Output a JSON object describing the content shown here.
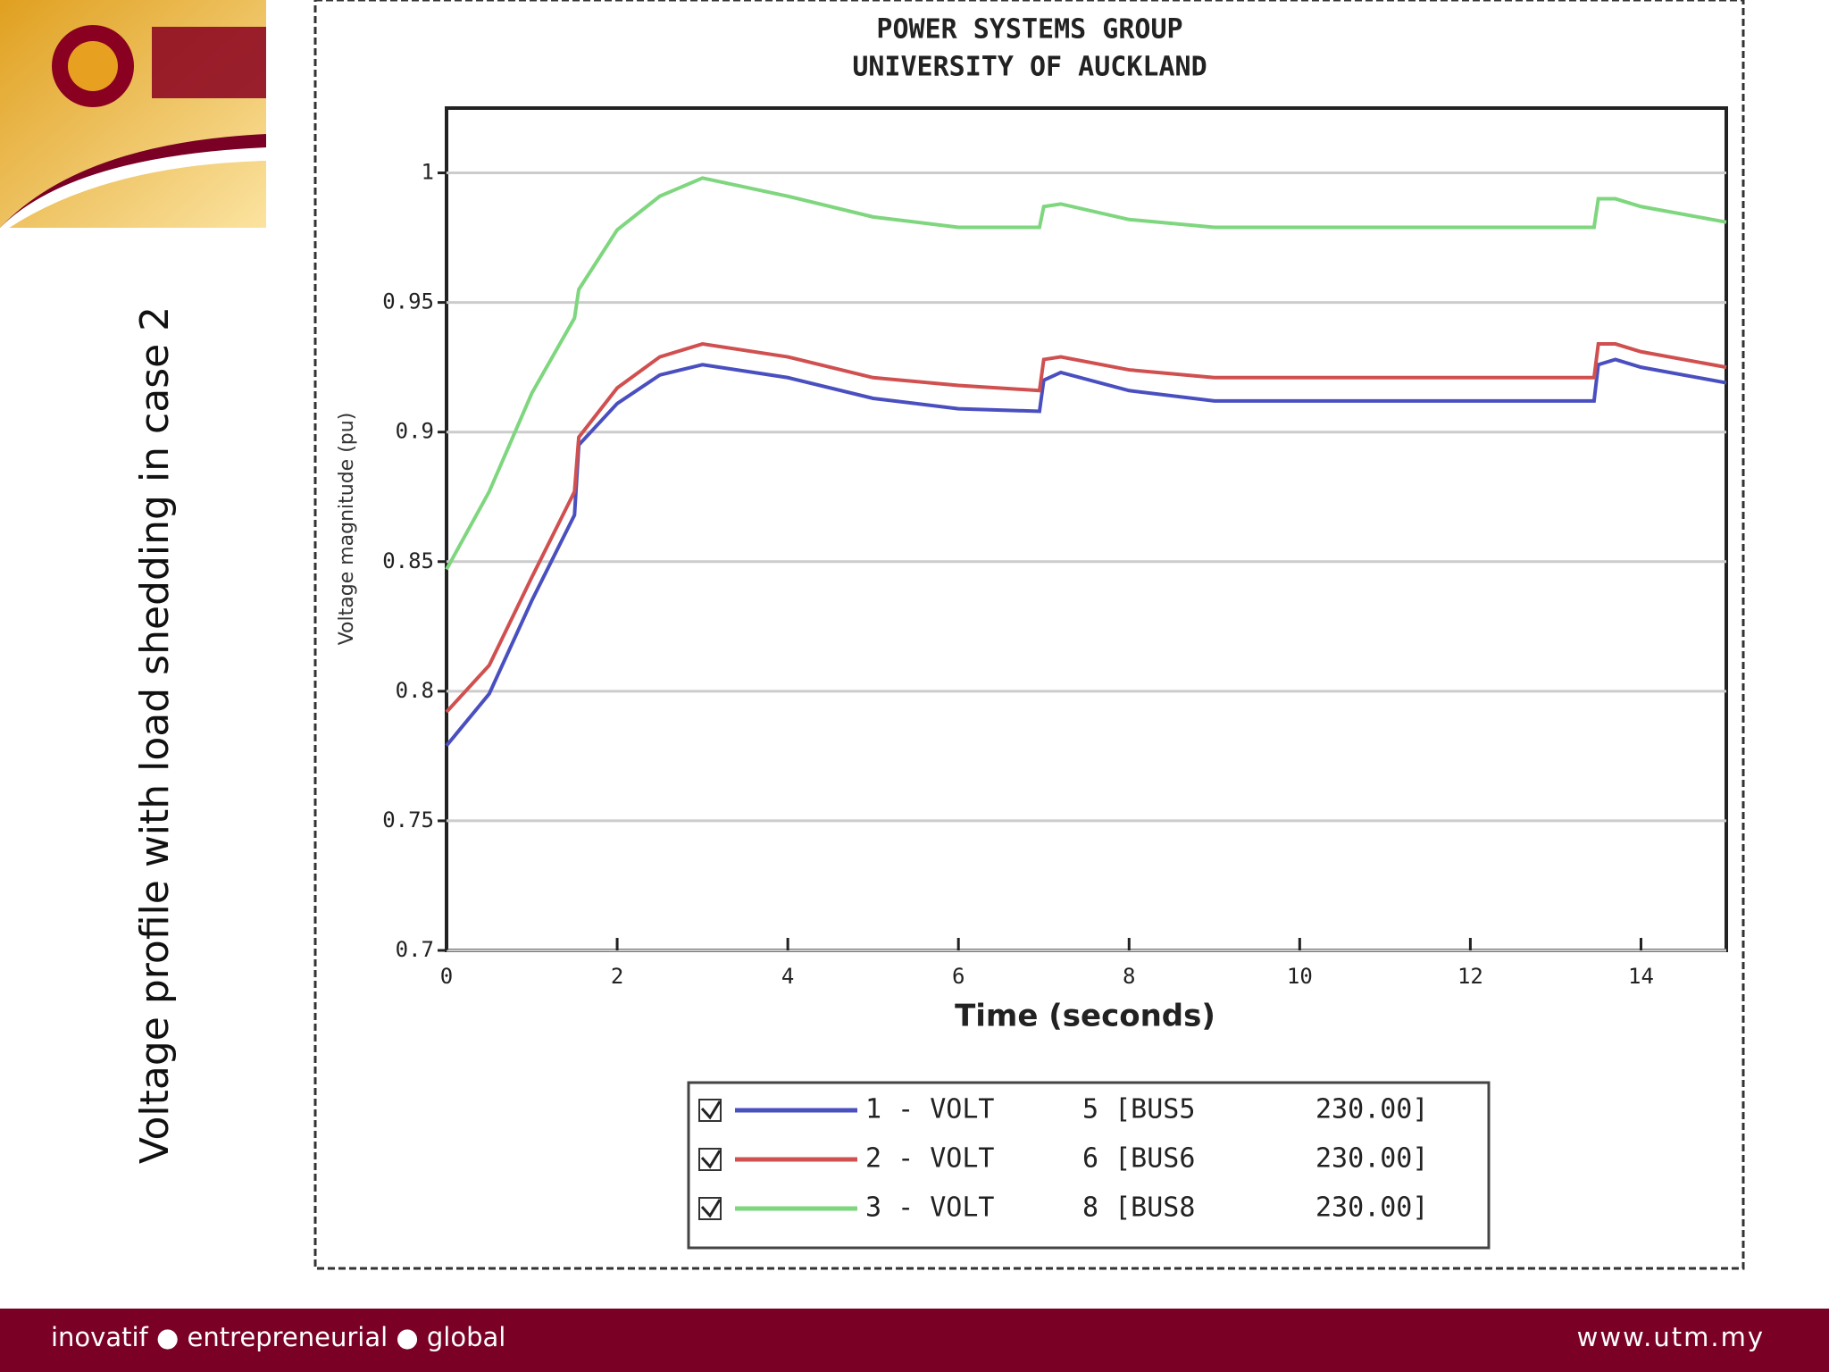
{
  "slide": {
    "caption": "Voltage profile with load shedding in case 2",
    "footer_left": "inovatif ● entrepreneurial ● global",
    "footer_right": "www.utm.my"
  },
  "chart_data": {
    "type": "line",
    "title": "POWER SYSTEMS GROUP",
    "subtitle": "UNIVERSITY OF AUCKLAND",
    "x_label": "Time (seconds)",
    "y_label": "Voltage magnitude (pu)",
    "x": [
      0,
      0.5,
      1,
      1.5,
      1.55,
      2,
      2.5,
      3,
      4,
      5,
      6,
      6.95,
      7,
      7.2,
      8,
      9,
      13.45,
      13.5,
      13.7,
      14,
      15
    ],
    "series": [
      {
        "name": "1 - VOLT",
        "bus": "5 [BUS5",
        "kv": "230.00]",
        "color": "#4a4fc0",
        "values": [
          0.779,
          0.799,
          0.835,
          0.868,
          0.895,
          0.911,
          0.922,
          0.926,
          0.921,
          0.913,
          0.909,
          0.908,
          0.92,
          0.923,
          0.916,
          0.912,
          0.912,
          0.926,
          0.928,
          0.925,
          0.919
        ]
      },
      {
        "name": "2 - VOLT",
        "bus": "6 [BUS6",
        "kv": "230.00]",
        "color": "#d05050",
        "values": [
          0.792,
          0.81,
          0.844,
          0.877,
          0.898,
          0.917,
          0.929,
          0.934,
          0.929,
          0.921,
          0.918,
          0.916,
          0.928,
          0.929,
          0.924,
          0.921,
          0.921,
          0.934,
          0.934,
          0.931,
          0.925
        ]
      },
      {
        "name": "3 - VOLT",
        "bus": "8 [BUS8",
        "kv": "230.00]",
        "color": "#7ed67e",
        "values": [
          0.847,
          0.877,
          0.915,
          0.944,
          0.955,
          0.978,
          0.991,
          0.998,
          0.991,
          0.983,
          0.979,
          0.979,
          0.987,
          0.988,
          0.982,
          0.979,
          0.979,
          0.99,
          0.99,
          0.987,
          0.981
        ]
      }
    ],
    "xlim": [
      0,
      15
    ],
    "xticks": [
      0,
      2,
      4,
      6,
      8,
      10,
      12,
      14
    ],
    "ylim": [
      0.7,
      1.025
    ],
    "yticks": [
      0.7,
      0.75,
      0.8,
      0.85,
      0.9,
      0.95,
      1
    ],
    "grid": true
  }
}
